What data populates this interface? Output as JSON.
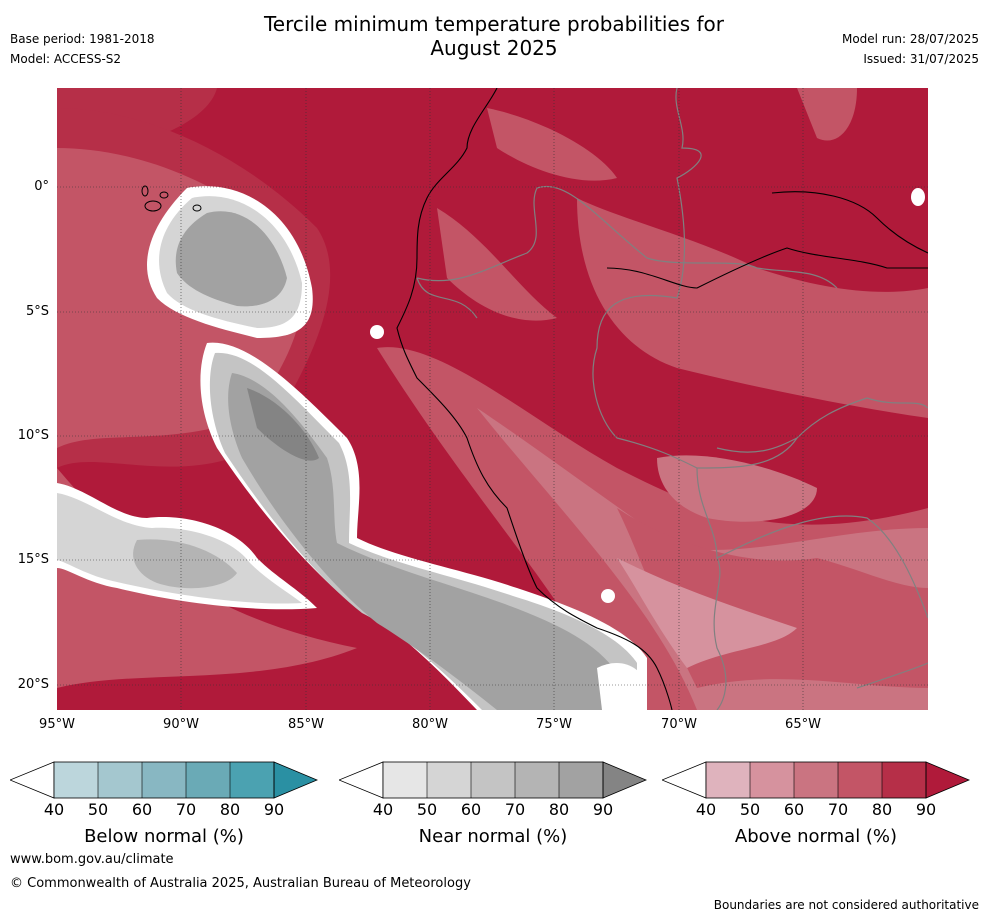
{
  "title_line1": "Tercile minimum temperature probabilities for",
  "title_line2": "August 2025",
  "base_period": "Base period: 1981-2018",
  "model": "Model: ACCESS-S2",
  "model_run": "Model run: 28/07/2025",
  "issued": "Issued: 31/07/2025",
  "lat_labels": [
    "0°",
    "5°S",
    "10°S",
    "15°S",
    "20°S"
  ],
  "lon_labels": [
    "95°W",
    "90°W",
    "85°W",
    "80°W",
    "75°W",
    "70°W",
    "65°W"
  ],
  "colorbars": [
    {
      "title": "Below normal (%)",
      "ticks": [
        "40",
        "50",
        "60",
        "70",
        "80",
        "90"
      ],
      "colors": [
        "#ffffff",
        "#bcd6dc",
        "#a4c7cf",
        "#88b7c2",
        "#6aaab6",
        "#4ba2b1",
        "#2a90a3"
      ]
    },
    {
      "title": "Near normal (%)",
      "ticks": [
        "40",
        "50",
        "60",
        "70",
        "80",
        "90"
      ],
      "colors": [
        "#ffffff",
        "#e6e6e6",
        "#d5d5d5",
        "#c4c4c4",
        "#b4b4b4",
        "#a2a2a2",
        "#848484"
      ]
    },
    {
      "title": "Above normal (%)",
      "ticks": [
        "40",
        "50",
        "60",
        "70",
        "80",
        "90"
      ],
      "colors": [
        "#ffffff",
        "#dfb3bd",
        "#d6929e",
        "#ca7481",
        "#c35566",
        "#b62f48",
        "#b01a3a"
      ]
    }
  ],
  "footer_url": "www.bom.gov.au/climate",
  "footer_copyright": "© Commonwealth of Australia 2025, Australian Bureau of Meteorology",
  "footer_note": "Boundaries are not considered authoritative"
}
